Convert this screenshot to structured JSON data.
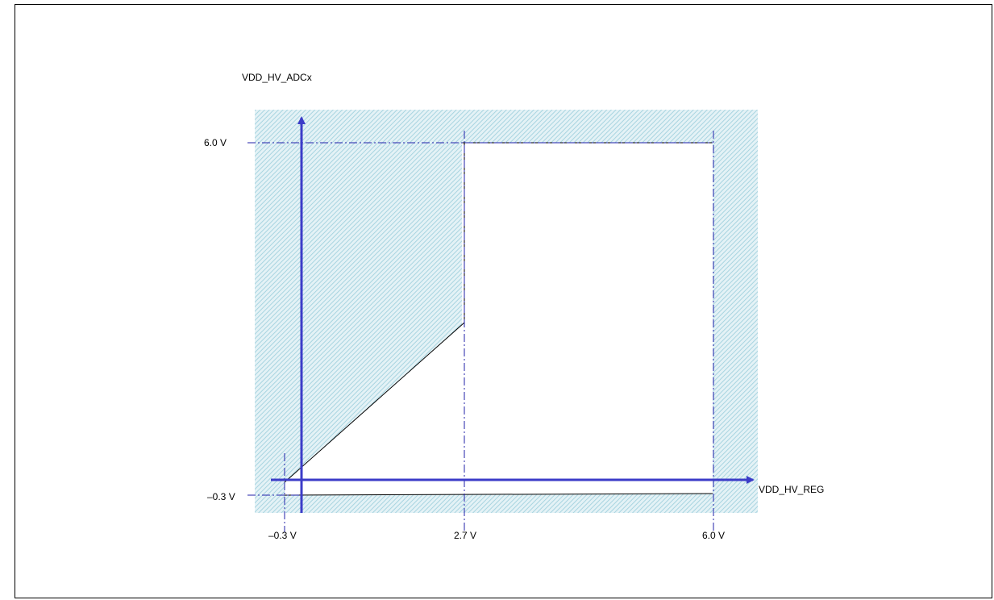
{
  "diagram": {
    "y_axis_label": "VDD_HV_ADCx",
    "x_axis_label": "VDD_HV_REG",
    "y_ticks": {
      "top": "6.0 V",
      "bottom": "–0.3 V"
    },
    "x_ticks": {
      "left": "–0.3 V",
      "mid": "2.7 V",
      "right": "6.0 V"
    },
    "colors": {
      "axis": "#3c3cc8",
      "guide": "#2222aa",
      "hatch": "#a8d4e0",
      "outline": "#000000",
      "frame": "#000000"
    }
  }
}
